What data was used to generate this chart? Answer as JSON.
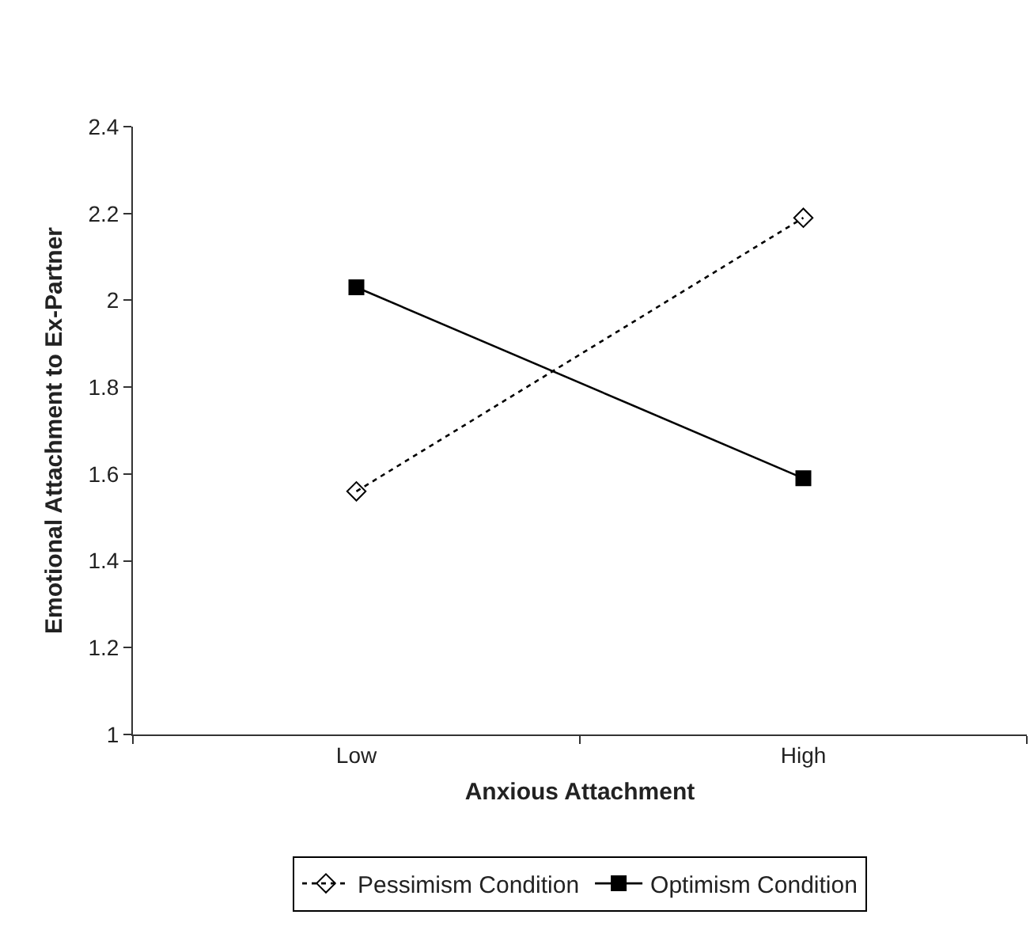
{
  "chart_data": {
    "type": "line",
    "xlabel": "Anxious Attachment",
    "ylabel": "Emotional Attachment to Ex-Partner",
    "categories": [
      "Low",
      "High"
    ],
    "series": [
      {
        "name": "Pessimism Condition",
        "color": "#000000",
        "values": [
          1.56,
          2.19
        ],
        "marker": "diamond",
        "line_style": "dotted"
      },
      {
        "name": "Optimism Condition",
        "color": "#000000",
        "values": [
          2.03,
          1.59
        ],
        "marker": "square",
        "line_style": "solid"
      }
    ],
    "ylim": [
      1,
      2.4
    ],
    "yticks": [
      1,
      1.2,
      1.4,
      1.6,
      1.8,
      2,
      2.2,
      2.4
    ],
    "grid": false,
    "legend": "bottom"
  }
}
